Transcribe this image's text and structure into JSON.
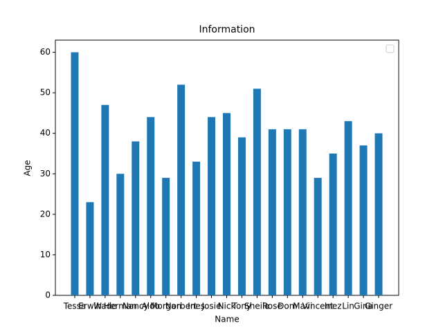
{
  "chart_data": {
    "type": "bar",
    "title": "Information",
    "x_label": "Name",
    "y_label": "Age",
    "categories": [
      "Tessa",
      "Erwin",
      "Wade",
      "Herman",
      "Nancy",
      "Aldo",
      "Morgan",
      "Norbert",
      "Ines",
      "Josie",
      "Nick",
      "Tony",
      "Sheila",
      "Rose",
      "Dom",
      "Mavi",
      "Vincent",
      "Inez",
      "Lin",
      "Gina",
      "Ginger"
    ],
    "values": [
      60,
      23,
      47,
      30,
      38,
      44,
      29,
      52,
      33,
      44,
      45,
      39,
      51,
      41,
      41,
      41,
      29,
      35,
      43,
      37,
      40
    ],
    "color": "#1f77b4",
    "ylim": [
      0,
      63
    ],
    "yticks": [
      0,
      10,
      20,
      30,
      40,
      50,
      60
    ],
    "grid": false
  }
}
